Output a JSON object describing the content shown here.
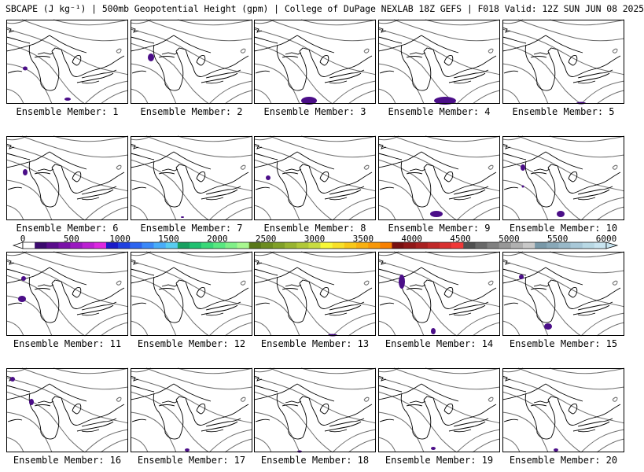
{
  "title": "SBCAPE (J kg⁻¹) | 500mb Geopotential Height (gpm) | College of DuPage NEXLAB 18Z GEFS | F018 Valid: 12Z SUN JUN 08 2025",
  "colorbar": {
    "tick_labels": [
      "0",
      "500",
      "1000",
      "1500",
      "2000",
      "2500",
      "3000",
      "3500",
      "4000",
      "4500",
      "5000",
      "5500",
      "6000"
    ],
    "colors": [
      "#ffffff",
      "#3b0a6e",
      "#5a0c8c",
      "#7a10a8",
      "#9a18c0",
      "#bb20d2",
      "#dc28e0",
      "#1a1ac8",
      "#2040e0",
      "#2c64f0",
      "#3a88f8",
      "#48acf8",
      "#58ccf0",
      "#18a060",
      "#20c070",
      "#38d878",
      "#58e880",
      "#80f088",
      "#a8f890",
      "#587818",
      "#6c8c20",
      "#80a028",
      "#98b430",
      "#b0c838",
      "#c8dc40",
      "#f8f838",
      "#f8e028",
      "#f8c818",
      "#f8b010",
      "#f89808",
      "#f88000",
      "#781010",
      "#901818",
      "#a82020",
      "#c02828",
      "#d83030",
      "#f03838",
      "#505050",
      "#686868",
      "#808080",
      "#989898",
      "#b0b0b0",
      "#c8c8c8",
      "#7898a8",
      "#88a8b8",
      "#98b8c8",
      "#a8c8d8",
      "#b8d8e4",
      "#c8e4f0"
    ]
  },
  "panels": [
    {
      "label": "Ensemble Member: 1"
    },
    {
      "label": "Ensemble Member: 2"
    },
    {
      "label": "Ensemble Member: 3"
    },
    {
      "label": "Ensemble Member: 4"
    },
    {
      "label": "Ensemble Member: 5"
    },
    {
      "label": "Ensemble Member: 6"
    },
    {
      "label": "Ensemble Member: 7"
    },
    {
      "label": "Ensemble Member: 8"
    },
    {
      "label": "Ensemble Member: 9"
    },
    {
      "label": "Ensemble Member: 10"
    },
    {
      "label": "Ensemble Member: 11"
    },
    {
      "label": "Ensemble Member: 12"
    },
    {
      "label": "Ensemble Member: 13"
    },
    {
      "label": "Ensemble Member: 14"
    },
    {
      "label": "Ensemble Member: 15"
    },
    {
      "label": "Ensemble Member: 16"
    },
    {
      "label": "Ensemble Member: 17"
    },
    {
      "label": "Ensemble Member: 18"
    },
    {
      "label": "Ensemble Member: 19"
    },
    {
      "label": "Ensemble Member: 20"
    }
  ]
}
